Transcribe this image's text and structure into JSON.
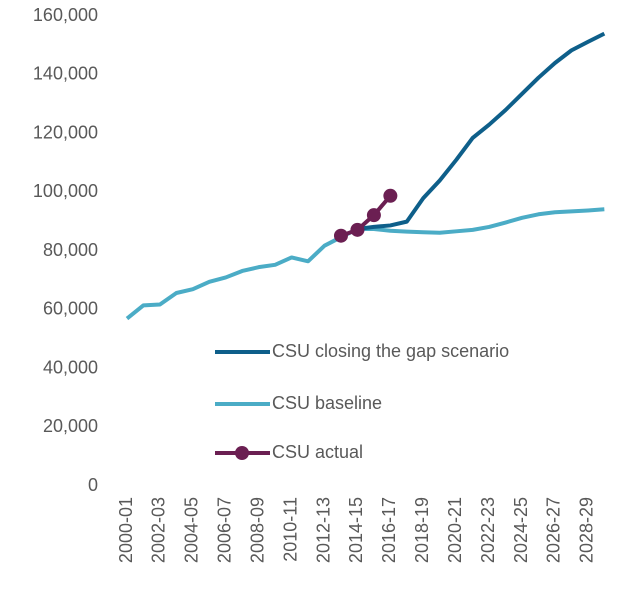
{
  "chart_data": {
    "type": "line",
    "categories": [
      "2000-01",
      null,
      "2002-03",
      null,
      "2004-05",
      null,
      "2006-07",
      null,
      "2008-09",
      null,
      "2010-11",
      null,
      "2012-13",
      null,
      "2014-15",
      null,
      "2016-17",
      null,
      "2018-19",
      null,
      "2020-21",
      null,
      "2022-23",
      null,
      "2024-25",
      null,
      "2026-27",
      null,
      "2028-29",
      null
    ],
    "series": [
      {
        "name": "CSU closing the gap scenario",
        "color": "#0e5f8a",
        "marker": false,
        "values": [
          null,
          null,
          null,
          null,
          null,
          null,
          null,
          null,
          null,
          null,
          null,
          null,
          null,
          null,
          87500,
          88200,
          88700,
          90000,
          98000,
          104000,
          111000,
          118500,
          123000,
          128000,
          133500,
          139000,
          144000,
          148300,
          151200,
          154000
        ]
      },
      {
        "name": "CSU baseline",
        "color": "#4bacc6",
        "marker": false,
        "values": [
          57000,
          61500,
          61800,
          65700,
          67000,
          69500,
          71000,
          73200,
          74500,
          75300,
          77800,
          76500,
          81800,
          84700,
          87500,
          87500,
          86900,
          86600,
          86400,
          86200,
          86700,
          87200,
          88200,
          89700,
          91300,
          92500,
          93200,
          93500,
          93800,
          94200
        ]
      },
      {
        "name": "CSU actual",
        "color": "#6b1f52",
        "marker": true,
        "values": [
          null,
          null,
          null,
          null,
          null,
          null,
          null,
          null,
          null,
          null,
          null,
          null,
          null,
          85200,
          87200,
          92200,
          98800,
          null,
          null,
          null,
          null,
          null,
          null,
          null,
          null,
          null,
          null,
          null,
          null,
          null
        ]
      }
    ],
    "ylim": [
      0,
      160000
    ],
    "yticks": [
      0,
      {
        "value": 20000,
        "label": "20,000"
      },
      {
        "value": 40000,
        "label": "40,000"
      },
      {
        "value": 60000,
        "label": "60,000"
      },
      {
        "value": 80000,
        "label": "80,000"
      },
      {
        "value": 100000,
        "label": "100,000"
      },
      {
        "value": 120000,
        "label": "120,000"
      },
      {
        "value": 140000,
        "label": "140,000"
      },
      {
        "value": 160000,
        "label": "160,000"
      }
    ],
    "grid": false,
    "legend": "lower right"
  }
}
